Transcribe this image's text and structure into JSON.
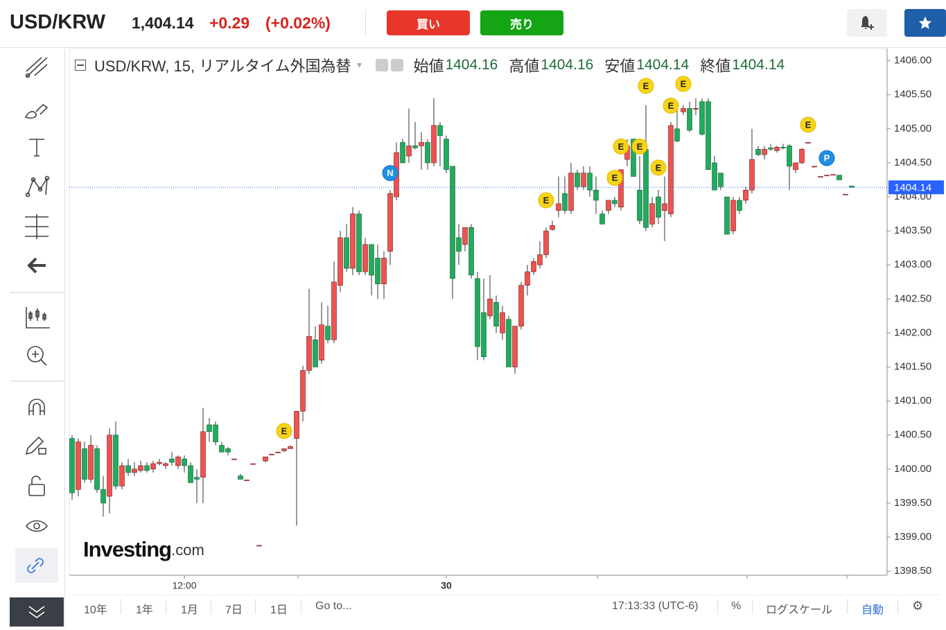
{
  "header": {
    "symbol": "USD/KRW",
    "price": "1,404.14",
    "change": "+0.29",
    "change_pct": "(+0.02%)",
    "buy": "買い",
    "sell": "売り"
  },
  "legend": {
    "title": "USD/KRW, 15, リアルタイム外国為替",
    "open_label": "始値",
    "open": 1404.16,
    "high_label": "高値",
    "high": 1404.16,
    "low_label": "安値",
    "low": 1404.14,
    "close_label": "終値",
    "close": 1404.14
  },
  "watermark": [
    "Investing",
    ".com"
  ],
  "chart_data": {
    "type": "candlestick",
    "up_color": "#ef5350",
    "down_color": "#22ab5e",
    "last_price_color": "#2962ff",
    "grid": false,
    "ylim": [
      1398.44,
      1406.18
    ],
    "yticks": [
      {
        "value": 1398.5,
        "label": "1398.50"
      },
      {
        "value": 1399,
        "label": "1399.00"
      },
      {
        "value": 1399.5,
        "label": "1399.50"
      },
      {
        "value": 1400,
        "label": "1400.00"
      },
      {
        "value": 1400.5,
        "label": "1400.50"
      },
      {
        "value": 1401,
        "label": "1401.00"
      },
      {
        "value": 1401.5,
        "label": "1401.50"
      },
      {
        "value": 1402,
        "label": "1402.00"
      },
      {
        "value": 1402.5,
        "label": "1402.50"
      },
      {
        "value": 1403,
        "label": "1403.00"
      },
      {
        "value": 1403.5,
        "label": "1403.50"
      },
      {
        "value": 1404,
        "label": "1404.00"
      },
      {
        "value": 1404.5,
        "label": "1404.50"
      },
      {
        "value": 1405,
        "label": "1405.00"
      },
      {
        "value": 1405.5,
        "label": "1405.50"
      },
      {
        "value": 1406,
        "label": "1406.00"
      }
    ],
    "last_price": 1404.14,
    "categories": [
      null,
      null,
      null,
      null,
      null,
      null,
      null,
      null,
      null,
      null,
      null,
      null,
      null,
      null,
      null,
      null,
      null,
      null,
      "12:00",
      null,
      null,
      null,
      null,
      null,
      null,
      null,
      null,
      null,
      null,
      null,
      null,
      null,
      null,
      null,
      null,
      null,
      null,
      null,
      null,
      null,
      null,
      null,
      null,
      null,
      null,
      null,
      null,
      null,
      null,
      null,
      null,
      null,
      null,
      null,
      null,
      null,
      null,
      null,
      null,
      null,
      "30",
      null,
      null,
      null,
      null,
      null,
      null,
      null,
      null,
      null,
      null,
      null,
      null,
      null,
      null,
      null,
      null,
      null,
      null,
      null,
      null,
      null,
      null,
      null,
      null,
      null,
      null,
      null,
      null,
      null,
      null,
      null,
      null,
      null,
      null,
      null,
      null,
      null,
      null,
      null,
      null,
      null,
      null,
      null,
      null,
      null,
      null,
      null,
      null,
      null,
      null,
      null,
      null,
      null,
      null,
      null,
      null,
      null,
      null,
      null,
      null,
      null,
      null,
      null,
      null,
      null
    ],
    "open": [
      1400.45,
      1399.7,
      1400.3,
      1399.85,
      1400.3,
      1399.7,
      1399.6,
      1400.5,
      1399.75,
      1400.05,
      1399.95,
      1399.98,
      1400.05,
      1400.0,
      1400.08,
      1400.05,
      1400.15,
      1400.05,
      1400.15,
      1400.05,
      1399.88,
      1399.88,
      1400.65,
      1400.65,
      1400.35,
      1400.3,
      1400.15,
      1399.9,
      1399.84,
      1400.08,
      1398.88,
      1400.12,
      1400.22,
      1400.25,
      1400.27,
      1400.3,
      1400.45,
      1400.85,
      1401.45,
      1401.9,
      1401.6,
      1402.1,
      1401.9,
      1402.7,
      1403.4,
      1402.95,
      1403.75,
      1402.9,
      1403.3,
      1403.1,
      1402.72,
      1403.2,
      1404.0,
      1404.8,
      1404.6,
      1404.75,
      1404.75,
      1404.8,
      1404.5,
      1405.05,
      1404.85,
      1404.45,
      1403.4,
      1403.3,
      1403.55,
      1402.8,
      1402.3,
      1402.25,
      1402.45,
      1402.0,
      1402.2,
      1401.5,
      1402.1,
      1402.7,
      1402.9,
      1403.0,
      1403.15,
      1403.52,
      1403.8,
      1404.05,
      1403.8,
      1404.35,
      1404.15,
      1404.35,
      1404.1,
      1403.75,
      1403.8,
      1403.95,
      1403.85,
      1404.55,
      1404.85,
      1404.1,
      1404.7,
      1403.6,
      1404.0,
      1403.8,
      1403.75,
      1405.0,
      1405.25,
      1405.3,
      1405.3,
      1405.4,
      1405.4,
      1404.5,
      1404.35,
      1404.0,
      1403.5,
      1403.95,
      1403.95,
      1404.1,
      1404.7,
      1404.62,
      1404.72,
      1404.68,
      1404.73,
      1404.75,
      1404.4,
      1404.5,
      1404.8,
      1404.45,
      1404.3,
      1404.32,
      1404.33,
      1404.32,
      1404.04,
      1404.16
    ],
    "high": [
      1400.5,
      1400.45,
      1400.4,
      1400.5,
      1400.35,
      1399.9,
      1400.6,
      1400.7,
      1400.1,
      1400.15,
      1400.1,
      1400.12,
      1400.1,
      1400.12,
      1400.15,
      1400.1,
      1400.25,
      1400.2,
      1400.2,
      1400.1,
      1400.0,
      1400.9,
      1400.75,
      1400.7,
      1400.4,
      1400.32,
      1400.15,
      1399.93,
      1399.84,
      1400.08,
      1398.88,
      1400.18,
      1400.22,
      1400.25,
      1400.3,
      1400.35,
      1400.85,
      1401.52,
      1402.65,
      1402.1,
      1402.45,
      1402.4,
      1403.05,
      1403.5,
      1403.6,
      1403.85,
      1403.8,
      1403.4,
      1403.3,
      1403.3,
      1403.2,
      1404.1,
      1404.8,
      1404.85,
      1405.3,
      1405.1,
      1404.95,
      1404.85,
      1405.45,
      1405.1,
      1404.9,
      1404.45,
      1403.6,
      1403.55,
      1403.6,
      1402.9,
      1402.8,
      1402.85,
      1402.55,
      1402.4,
      1402.25,
      1402.1,
      1402.75,
      1403.0,
      1403.1,
      1403.35,
      1403.55,
      1403.65,
      1404.3,
      1404.3,
      1404.5,
      1404.4,
      1404.45,
      1404.45,
      1404.3,
      1403.8,
      1403.95,
      1404.0,
      1404.4,
      1404.85,
      1404.85,
      1404.6,
      1405.35,
      1404.0,
      1404.1,
      1404.3,
      1405.1,
      1405.3,
      1405.35,
      1405.4,
      1405.45,
      1405.45,
      1405.45,
      1404.6,
      1404.35,
      1404.0,
      1404.0,
      1404.0,
      1404.15,
      1405.0,
      1404.75,
      1404.75,
      1404.78,
      1404.75,
      1404.78,
      1404.78,
      1404.5,
      1404.72,
      1404.8,
      1404.45,
      1404.3,
      1404.32,
      1404.33,
      1404.32,
      1404.04,
      1404.16
    ],
    "low": [
      1399.55,
      1399.6,
      1399.8,
      1399.8,
      1399.65,
      1399.3,
      1399.35,
      1399.7,
      1399.7,
      1399.9,
      1399.9,
      1399.95,
      1399.95,
      1399.95,
      1400.05,
      1400.0,
      1400.05,
      1400.0,
      1399.95,
      1399.8,
      1399.5,
      1399.5,
      1400.4,
      1400.35,
      1400.25,
      1400.2,
      1400.15,
      1399.85,
      1399.84,
      1400.08,
      1398.88,
      1400.1,
      1400.22,
      1400.25,
      1400.25,
      1400.3,
      1399.17,
      1400.7,
      1401.4,
      1401.5,
      1401.55,
      1401.85,
      1401.85,
      1402.6,
      1402.9,
      1402.85,
      1402.85,
      1402.85,
      1402.55,
      1402.5,
      1402.5,
      1403.0,
      1403.95,
      1404.5,
      1404.5,
      1404.7,
      1404.4,
      1404.4,
      1404.45,
      1404.45,
      1404.35,
      1402.5,
      1403.0,
      1403.2,
      1402.8,
      1401.6,
      1401.6,
      1402.2,
      1402.0,
      1401.9,
      1401.5,
      1401.4,
      1402.05,
      1402.55,
      1402.85,
      1402.95,
      1403.1,
      1403.5,
      1403.7,
      1403.75,
      1403.75,
      1404.1,
      1404.1,
      1404.0,
      1403.75,
      1403.6,
      1403.75,
      1403.85,
      1403.8,
      1404.45,
      1404.3,
      1403.6,
      1403.5,
      1403.55,
      1403.6,
      1403.35,
      1403.7,
      1404.8,
      1405.2,
      1404.95,
      1405.2,
      1404.9,
      1404.4,
      1404.1,
      1404.1,
      1403.45,
      1403.45,
      1403.75,
      1403.9,
      1404.05,
      1404.6,
      1404.55,
      1404.68,
      1404.65,
      1404.7,
      1404.1,
      1404.35,
      1404.48,
      1404.8,
      1404.45,
      1404.3,
      1404.32,
      1404.33,
      1404.25,
      1404.04,
      1404.14
    ],
    "close": [
      1399.65,
      1400.4,
      1399.85,
      1400.35,
      1399.7,
      1399.5,
      1400.5,
      1399.75,
      1400.05,
      1399.95,
      1400.0,
      1400.05,
      1399.98,
      1400.08,
      1400.1,
      1400.08,
      1400.1,
      1400.18,
      1400.05,
      1399.8,
      1399.85,
      1400.55,
      1400.55,
      1400.4,
      1400.25,
      1400.25,
      1400.15,
      1399.85,
      1399.84,
      1400.08,
      1398.88,
      1400.18,
      1400.22,
      1400.25,
      1400.3,
      1400.33,
      1400.85,
      1401.45,
      1401.95,
      1401.5,
      1402.12,
      1401.9,
      1402.75,
      1403.4,
      1402.95,
      1403.75,
      1402.9,
      1403.3,
      1402.85,
      1402.72,
      1403.1,
      1404.05,
      1404.65,
      1404.5,
      1404.75,
      1404.72,
      1404.8,
      1404.5,
      1405.05,
      1404.9,
      1404.4,
      1402.8,
      1403.2,
      1403.55,
      1402.85,
      1401.8,
      1401.65,
      1402.5,
      1402.1,
      1402.3,
      1401.5,
      1402.1,
      1402.7,
      1402.9,
      1403.05,
      1403.15,
      1403.5,
      1403.58,
      1403.9,
      1403.8,
      1404.35,
      1404.15,
      1404.35,
      1404.1,
      1403.95,
      1403.6,
      1403.95,
      1403.9,
      1404.4,
      1404.75,
      1404.3,
      1403.65,
      1403.55,
      1403.9,
      1403.7,
      1403.9,
      1405.05,
      1404.82,
      1405.3,
      1404.98,
      1405.3,
      1404.92,
      1404.4,
      1404.1,
      1404.15,
      1403.45,
      1403.95,
      1403.8,
      1404.1,
      1404.55,
      1404.62,
      1404.7,
      1404.7,
      1404.73,
      1404.72,
      1404.45,
      1404.5,
      1404.7,
      1404.8,
      1404.45,
      1404.3,
      1404.32,
      1404.33,
      1404.25,
      1404.04,
      1404.14
    ],
    "events": [
      {
        "label": "E",
        "index": 34,
        "y": 1400.56
      },
      {
        "label": "N",
        "index": 51,
        "y": 1404.35
      },
      {
        "label": "E",
        "index": 76,
        "y": 1403.95
      },
      {
        "label": "E",
        "index": 87,
        "y": 1404.28
      },
      {
        "label": "E",
        "index": 88,
        "y": 1404.74
      },
      {
        "label": "E",
        "index": 91,
        "y": 1404.74
      },
      {
        "label": "E",
        "index": 92,
        "y": 1405.63
      },
      {
        "label": "E",
        "index": 94,
        "y": 1404.43
      },
      {
        "label": "E",
        "index": 96,
        "y": 1405.34
      },
      {
        "label": "E",
        "index": 98,
        "y": 1405.66
      },
      {
        "label": "E",
        "index": 118,
        "y": 1405.06
      },
      {
        "label": "P",
        "index": 121,
        "y": 1404.57
      }
    ]
  },
  "bottom_bar": {
    "ranges": [
      "10年",
      "1年",
      "1月",
      "7日",
      "1日"
    ],
    "goto": "Go to...",
    "time": "17:13:33 (UTC-6)",
    "percent": "%",
    "log": "ログスケール",
    "auto": "自動"
  }
}
